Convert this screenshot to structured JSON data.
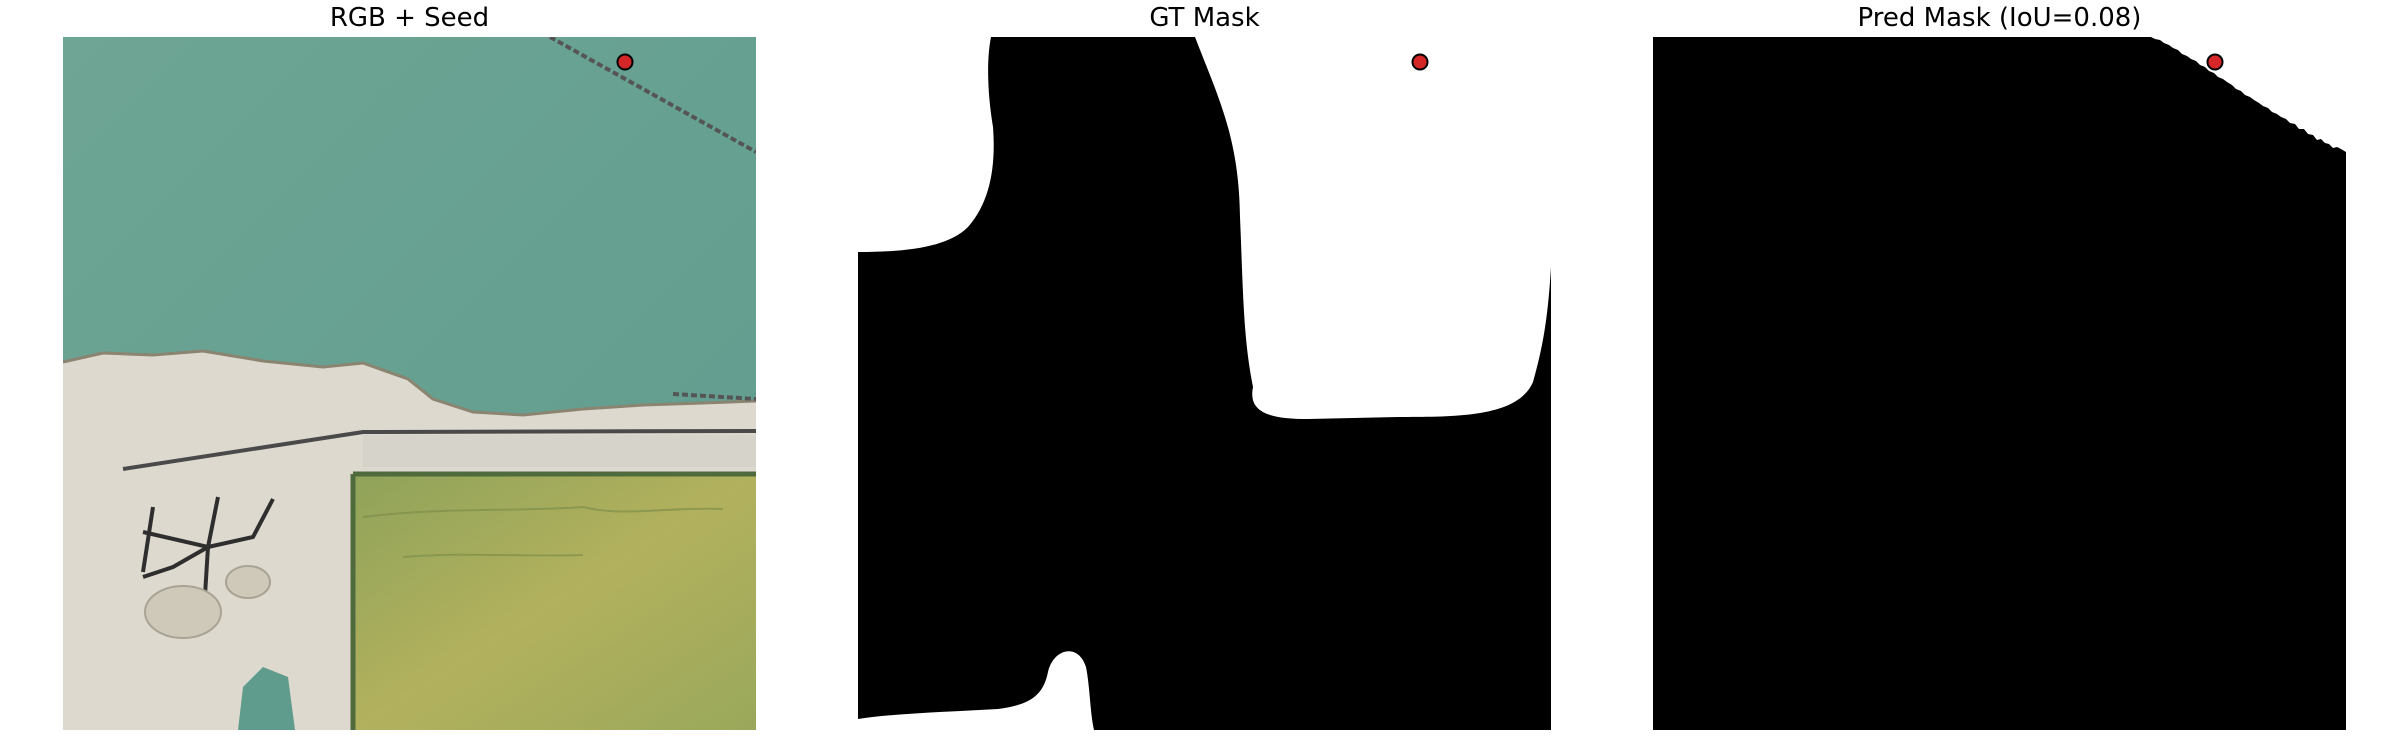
{
  "panels": [
    {
      "title": "RGB + Seed"
    },
    {
      "title": "GT Mask"
    },
    {
      "title": "Pred Mask (IoU=0.08)"
    }
  ],
  "seed_marker": {
    "fill": "#d62728",
    "stroke": "#000000"
  },
  "colors": {
    "water": "#6fa594",
    "sand": "#ddd9cf",
    "field": "#a6ac5a",
    "mask_foreground": "#ffffff",
    "mask_background": "#000000"
  }
}
